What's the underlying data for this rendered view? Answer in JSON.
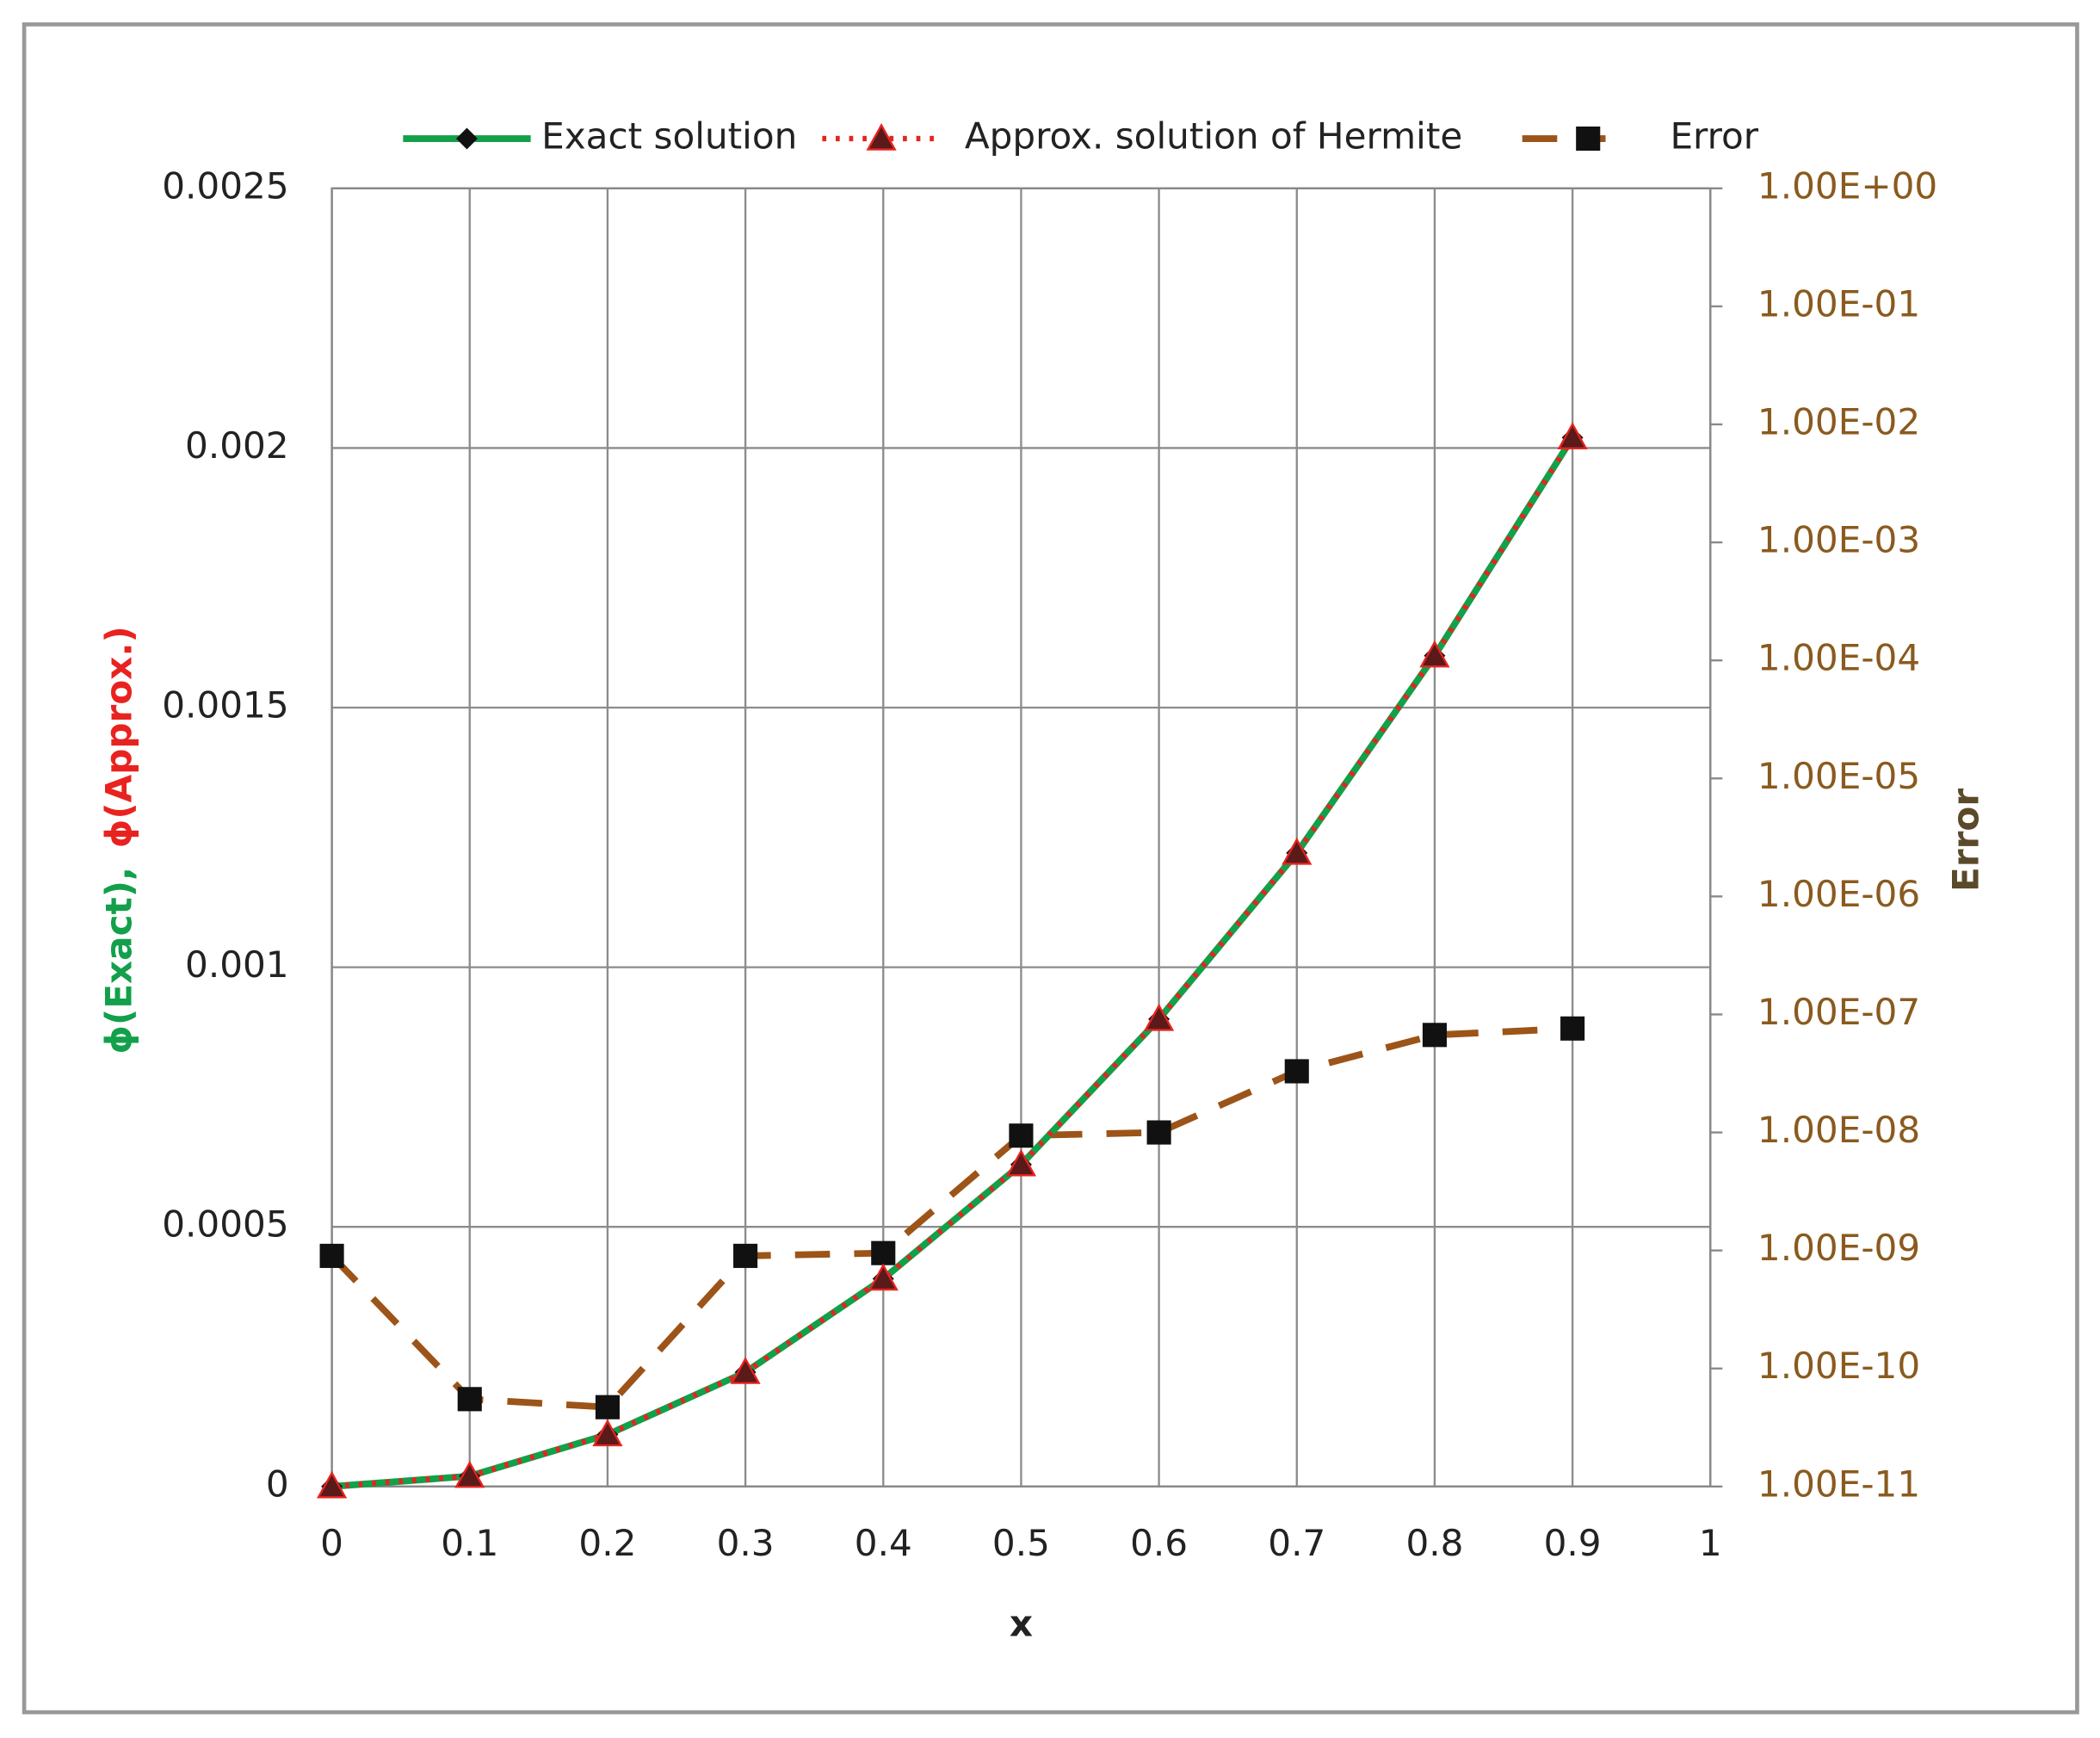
{
  "chart_data": {
    "type": "line",
    "xlabel": "x",
    "ylabel": [
      "ϕ(Exact),",
      "ϕ(Approx.)"
    ],
    "y2label": "Error",
    "x": [
      0,
      0.1,
      0.2,
      0.3,
      0.4,
      0.5,
      0.6,
      0.7,
      0.8,
      0.9
    ],
    "series": [
      {
        "name": "Exact solution",
        "color": "#12a04a",
        "marker": "diamond",
        "style": "solid",
        "values": [
          0,
          2e-05,
          0.0001,
          0.00022,
          0.0004,
          0.00062,
          0.0009,
          0.00122,
          0.0016,
          0.00202
        ]
      },
      {
        "name": "Approx. solution of Hermite",
        "color": "#e8231f",
        "marker": "triangle",
        "style": "dotted",
        "values": [
          0,
          2e-05,
          0.0001,
          0.00022,
          0.0004,
          0.00062,
          0.0009,
          0.00122,
          0.0016,
          0.00202
        ]
      },
      {
        "name": "Error",
        "color": "#9c5418",
        "marker": "square",
        "style": "dashed",
        "axis": "y2",
        "values": [
          9e-10,
          5.5e-11,
          4.7e-11,
          9e-10,
          9.5e-10,
          9.4e-09,
          1e-08,
          3.3e-08,
          6.7e-08,
          7.6e-08
        ]
      }
    ],
    "xlim": [
      0,
      1
    ],
    "xticks": [
      0,
      0.1,
      0.2,
      0.3,
      0.4,
      0.5,
      0.6,
      0.7,
      0.8,
      0.9,
      1
    ],
    "ylim": [
      0,
      0.0025
    ],
    "yticks": [
      0,
      0.0005,
      0.001,
      0.0015,
      0.002,
      0.0025
    ],
    "y2lim": [
      1e-11,
      1
    ],
    "y2log": true,
    "y2ticks": [
      {
        "value": 1e-11,
        "label": "1.00E-11"
      },
      {
        "value": 1e-10,
        "label": "1.00E-10"
      },
      {
        "value": 1e-09,
        "label": "1.00E-09"
      },
      {
        "value": 1e-08,
        "label": "1.00E-08"
      },
      {
        "value": 1e-07,
        "label": "1.00E-07"
      },
      {
        "value": 1e-06,
        "label": "1.00E-06"
      },
      {
        "value": 1e-05,
        "label": "1.00E-05"
      },
      {
        "value": 0.0001,
        "label": "1.00E-04"
      },
      {
        "value": 0.001,
        "label": "1.00E-03"
      },
      {
        "value": 0.01,
        "label": "1.00E-02"
      },
      {
        "value": 0.1,
        "label": "1.00E-01"
      },
      {
        "value": 1,
        "label": "1.00E+00"
      }
    ],
    "grid": true,
    "legend": "top"
  }
}
